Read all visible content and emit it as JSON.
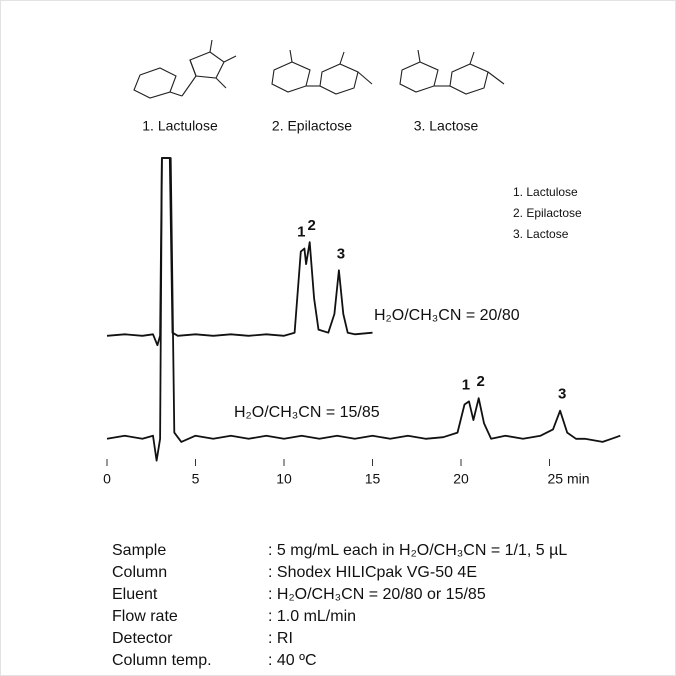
{
  "compounds": [
    "1. Lactulose",
    "2. Epilactose",
    "3. Lactose"
  ],
  "chart_data": {
    "type": "line",
    "xlim": [
      0,
      30
    ],
    "xticks": [
      0,
      5,
      10,
      15,
      20,
      {
        "value": 25,
        "label": "25 min"
      }
    ],
    "ylim": [
      0,
      100
    ],
    "color": "#111111",
    "series": [
      {
        "name": "H₂O/CH₃CN = 20/80",
        "peak_labels": [
          "1",
          "2",
          "3"
        ],
        "x": [
          0,
          1,
          2,
          2.6,
          2.85,
          3.0,
          3.1,
          3.55,
          3.7,
          4.0,
          5,
          6,
          7,
          8,
          9,
          10,
          10.6,
          10.95,
          11.15,
          11.25,
          11.45,
          11.7,
          11.95,
          12.5,
          12.85,
          13.1,
          13.35,
          13.6,
          14,
          15
        ],
        "values": [
          43,
          43.5,
          43,
          43.5,
          40,
          43,
          100,
          100,
          44,
          43,
          43.5,
          43,
          43.5,
          43,
          43.5,
          43,
          44,
          70,
          71,
          66,
          73,
          55,
          45,
          44,
          50,
          64,
          50,
          44,
          43.5,
          44
        ]
      },
      {
        "name": "H₂O/CH₃CN = 15/85",
        "peak_labels": [
          "1",
          "2",
          "3"
        ],
        "x": [
          0,
          1,
          2,
          2.6,
          2.8,
          3.0,
          3.1,
          3.6,
          3.8,
          4.2,
          5,
          6,
          7,
          8,
          9,
          10,
          11,
          12,
          13,
          14,
          15,
          16,
          17,
          18,
          19,
          19.8,
          20.2,
          20.45,
          20.7,
          21.0,
          21.3,
          21.7,
          22.5,
          23.5,
          24.5,
          25.2,
          25.6,
          26.0,
          26.5,
          27,
          28,
          28.5,
          29
        ],
        "values": [
          10,
          11,
          10,
          11,
          3,
          10,
          100,
          100,
          12,
          9,
          11,
          10,
          11,
          10,
          11,
          10,
          11,
          10,
          11,
          10,
          11,
          10,
          11,
          10,
          10.5,
          12,
          21,
          22,
          16,
          23,
          15,
          10,
          11,
          10,
          11,
          13,
          19,
          12,
          10,
          10,
          9,
          10,
          11
        ]
      }
    ]
  },
  "conditions": [
    [
      "Sample",
      ": 5 mg/mL each in H₂O/CH₃CN = 1/1, 5 µL"
    ],
    [
      "Column",
      ": Shodex HILICpak VG-50 4E"
    ],
    [
      "Eluent",
      ": H₂O/CH₃CN = 20/80 or 15/85"
    ],
    [
      "Flow rate",
      ": 1.0 mL/min"
    ],
    [
      "Detector",
      ": RI"
    ],
    [
      "Column temp.",
      ": 40 ºC"
    ]
  ]
}
